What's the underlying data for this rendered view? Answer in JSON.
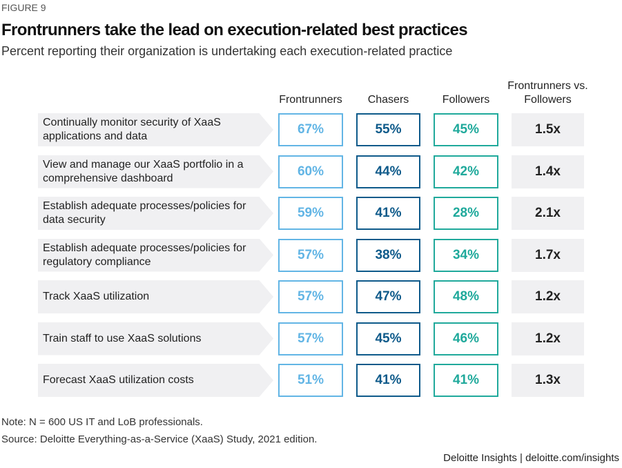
{
  "figure_label": "FIGURE 9",
  "title": "Frontrunners take the lead on execution-related best practices",
  "subtitle": "Percent reporting their organization is undertaking each execution-related practice",
  "table": {
    "columns": [
      "Frontrunners",
      "Chasers",
      "Followers",
      "Frontrunners vs. Followers"
    ],
    "rows": [
      [
        "Continually monitor security of XaaS applications and data",
        "67%",
        "55%",
        "45%",
        "1.5x"
      ],
      [
        "View and manage our XaaS portfolio in a comprehensive dashboard",
        "60%",
        "44%",
        "42%",
        "1.4x"
      ],
      [
        "Establish adequate processes/policies for data security",
        "59%",
        "41%",
        "28%",
        "2.1x"
      ],
      [
        "Establish adequate processes/policies for regulatory compliance",
        "57%",
        "38%",
        "34%",
        "1.7x"
      ],
      [
        "Track XaaS utilization",
        "57%",
        "47%",
        "48%",
        "1.2x"
      ],
      [
        "Train staff to use XaaS solutions",
        "57%",
        "45%",
        "46%",
        "1.2x"
      ],
      [
        "Forecast XaaS utilization costs",
        "51%",
        "41%",
        "41%",
        "1.3x"
      ]
    ]
  },
  "note": "Note: N = 600 US IT and LoB professionals.",
  "source": "Source: Deloitte Everything-as-a-Service (XaaS) Study, 2021 edition.",
  "footer": "Deloitte Insights | deloitte.com/insights"
}
